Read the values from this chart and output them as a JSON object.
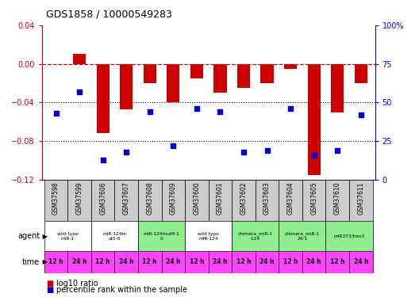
{
  "title": "GDS1858 / 10000549283",
  "samples": [
    "GSM37598",
    "GSM37599",
    "GSM37606",
    "GSM37607",
    "GSM37608",
    "GSM37609",
    "GSM37600",
    "GSM37601",
    "GSM37602",
    "GSM37603",
    "GSM37604",
    "GSM37605",
    "GSM37610",
    "GSM37611"
  ],
  "log10_ratio": [
    0.0,
    0.01,
    -0.072,
    -0.047,
    -0.02,
    -0.04,
    -0.015,
    -0.03,
    -0.025,
    -0.02,
    -0.005,
    -0.115,
    -0.05,
    -0.02
  ],
  "percentile_rank": [
    43,
    57,
    13,
    18,
    44,
    22,
    46,
    44,
    18,
    19,
    46,
    16,
    19,
    42
  ],
  "ylim_left": [
    -0.12,
    0.04
  ],
  "ylim_right": [
    0,
    100
  ],
  "yticks_left": [
    0.04,
    0,
    -0.04,
    -0.08,
    -0.12
  ],
  "yticks_right": [
    100,
    75,
    50,
    25,
    0
  ],
  "agents": [
    {
      "label": "wild type\nmiR-1",
      "start": 0,
      "end": 2,
      "color": "#ffffff"
    },
    {
      "label": "miR-124m\nut5-6",
      "start": 2,
      "end": 4,
      "color": "#ffffff"
    },
    {
      "label": "miR-124mut9-1\n0",
      "start": 4,
      "end": 6,
      "color": "#90ee90"
    },
    {
      "label": "wild type\nmiR-124",
      "start": 6,
      "end": 8,
      "color": "#ffffff"
    },
    {
      "label": "chimera_miR-1\n-124",
      "start": 8,
      "end": 10,
      "color": "#90ee90"
    },
    {
      "label": "chimera_miR-1\n24-1",
      "start": 10,
      "end": 12,
      "color": "#90ee90"
    },
    {
      "label": "miR373/hes3",
      "start": 12,
      "end": 14,
      "color": "#90ee90"
    }
  ],
  "bar_color": "#cc0000",
  "dot_color": "#0000cc",
  "time_color": "#ff44ff",
  "agent_white_color": "#ffffff",
  "agent_green_color": "#90ee90",
  "sample_bg_color": "#cccccc"
}
